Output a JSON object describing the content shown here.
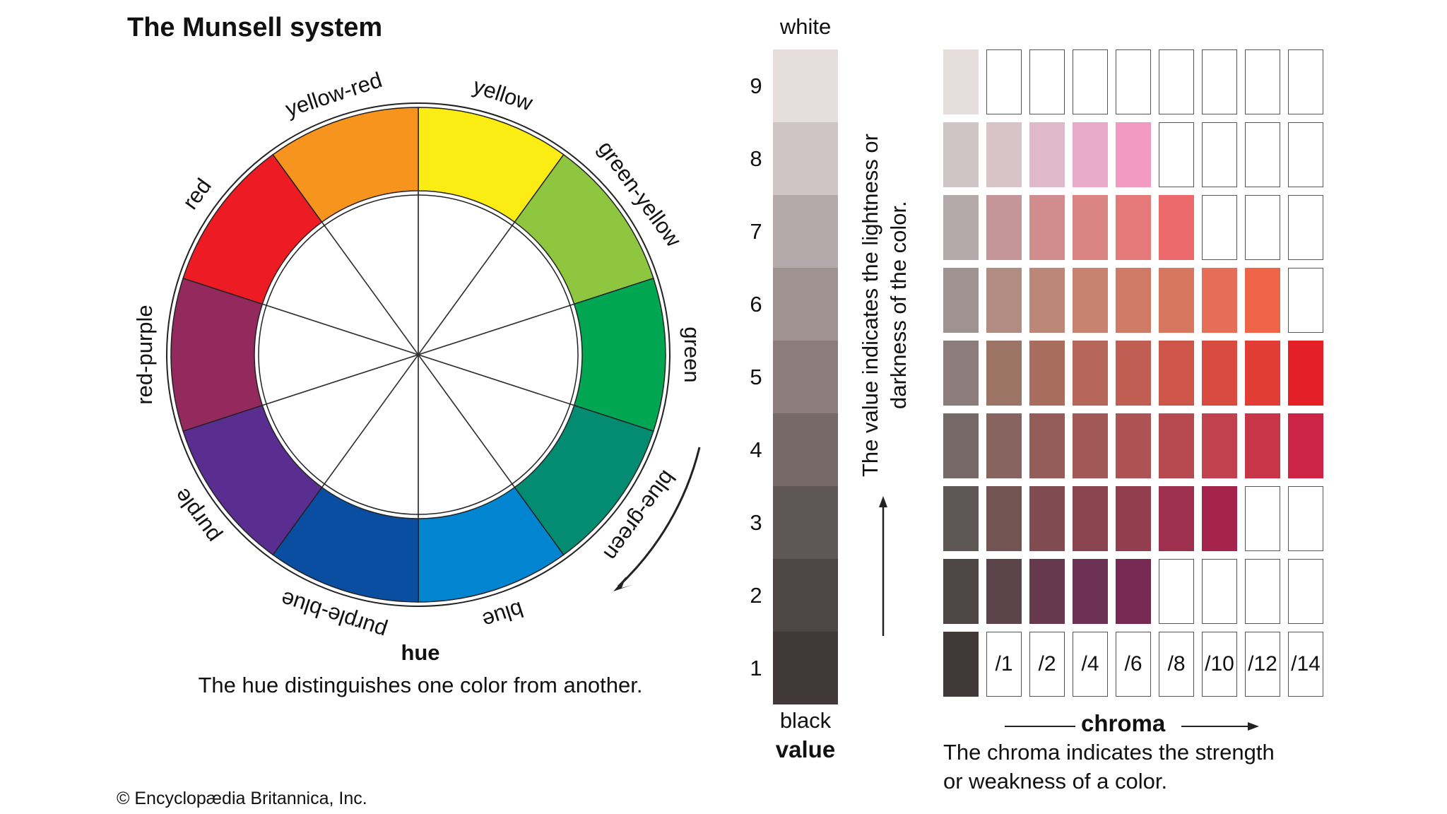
{
  "title": "The Munsell system",
  "hue": {
    "title": "hue",
    "description": "The hue distinguishes one color from another.",
    "segments": [
      {
        "name": "yellow",
        "color": "#fbec13"
      },
      {
        "name": "green-yellow",
        "color": "#8ec63f"
      },
      {
        "name": "green",
        "color": "#00a652"
      },
      {
        "name": "blue-green",
        "color": "#038c72"
      },
      {
        "name": "blue",
        "color": "#0285d0"
      },
      {
        "name": "purple-blue",
        "color": "#0a4ea1"
      },
      {
        "name": "purple",
        "color": "#5a2d90"
      },
      {
        "name": "red-purple",
        "color": "#93295d"
      },
      {
        "name": "red",
        "color": "#ed1c24"
      },
      {
        "name": "yellow-red",
        "color": "#f7941d"
      }
    ]
  },
  "value": {
    "top_label": "white",
    "bottom_label": "black",
    "title": "value",
    "note": "The value indicates the lightness or darkness of the color.",
    "steps": [
      {
        "level": "9",
        "color": "#e6dedd"
      },
      {
        "level": "8",
        "color": "#cfc5c7"
      },
      {
        "level": "7",
        "color": "#b4aaab"
      },
      {
        "level": "6",
        "color": "#9f9391"
      },
      {
        "level": "5",
        "color": "#8c7c7b"
      },
      {
        "level": "4",
        "color": "#766a68"
      },
      {
        "level": "3",
        "color": "#5f5656"
      },
      {
        "level": "2",
        "color": "#4e4645"
      },
      {
        "level": "1",
        "color": "#403839"
      }
    ]
  },
  "chroma": {
    "title": "chroma",
    "description_line1": "The chroma indicates the strength",
    "description_line2": "or weakness of a color.",
    "labels": [
      "/1",
      "/2",
      "/4",
      "/6",
      "/8",
      "/10",
      "/12",
      "/14"
    ],
    "rows": [
      {
        "value": "9",
        "colors": [
          "#e6dedd",
          null,
          null,
          null,
          null,
          null,
          null,
          null,
          null
        ]
      },
      {
        "value": "8",
        "colors": [
          "#cfc5c7",
          "#d8c3c9",
          "#e0b9c9",
          "#e7aac8",
          "#f29ac1",
          null,
          null,
          null,
          null
        ]
      },
      {
        "value": "7",
        "colors": [
          "#b4aaab",
          "#c59698",
          "#d18d8d",
          "#da8484",
          "#e57979",
          "#ec6a6b",
          null,
          null,
          null
        ]
      },
      {
        "value": "6",
        "colors": [
          "#9f9391",
          "#b08c82",
          "#bb8777",
          "#c78270",
          "#d07b67",
          "#d8775f",
          "#e46e58",
          "#ee6449",
          null
        ]
      },
      {
        "value": "5",
        "colors": [
          "#8c7c7b",
          "#9c7466",
          "#a86d5d",
          "#b6675a",
          "#c15e53",
          "#cd554a",
          "#d94a3f",
          "#e23d35",
          "#e41f26"
        ]
      },
      {
        "value": "4",
        "colors": [
          "#766a68",
          "#87645f",
          "#955d5a",
          "#a25857",
          "#ad5255",
          "#b74a51",
          "#c1414e",
          "#c83448",
          "#cc2444"
        ]
      },
      {
        "value": "3",
        "colors": [
          "#5f5656",
          "#725453",
          "#804c51",
          "#8b4550",
          "#933e4f",
          "#9c304e",
          "#a4244e",
          null,
          null
        ]
      },
      {
        "value": "2",
        "colors": [
          "#4e4645",
          "#5c444b",
          "#66394e",
          "#6c3154",
          "#762a53",
          null,
          null,
          null,
          null
        ]
      },
      {
        "value": "1",
        "colors": [
          "#403839",
          null,
          null,
          null,
          null,
          null,
          null,
          null,
          null
        ]
      }
    ]
  },
  "copyright": "© Encyclopædia Britannica, Inc."
}
